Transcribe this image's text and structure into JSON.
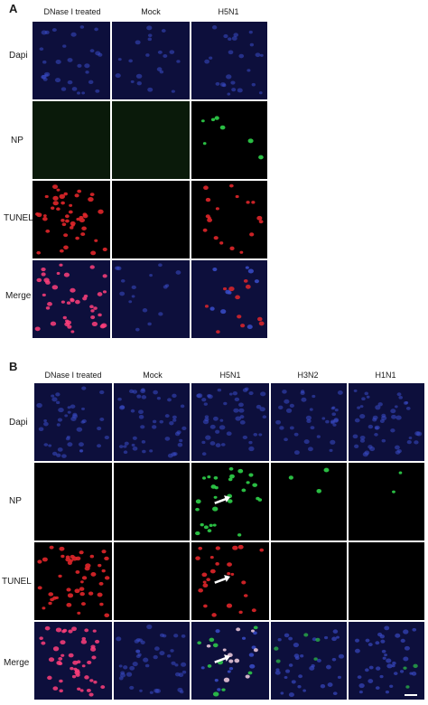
{
  "panel_a": {
    "letter": "A",
    "columns": [
      "DNase I treated",
      "Mock",
      "H5N1"
    ],
    "rows": [
      "Dapi",
      "NP",
      "TUNEL",
      "Merge"
    ]
  },
  "panel_b": {
    "letter": "B",
    "columns": [
      "DNase I treated",
      "Mock",
      "H5N1",
      "H3N2",
      "H1N1"
    ],
    "rows": [
      "Dapi",
      "NP",
      "TUNEL",
      "Merge"
    ]
  },
  "colors": {
    "dapi_bg": "#0d0f3c",
    "np_bg": "#0a1a0a",
    "black": "#000000",
    "blue_nucleus": "#3a4cc9",
    "green_nucleus": "#2fd14a",
    "red_nucleus": "#e0262a",
    "pink_nucleus": "#ff3e7a",
    "white_arrow": "#ffffff"
  },
  "icons": [
    "arrow-icon",
    "scale-bar"
  ]
}
